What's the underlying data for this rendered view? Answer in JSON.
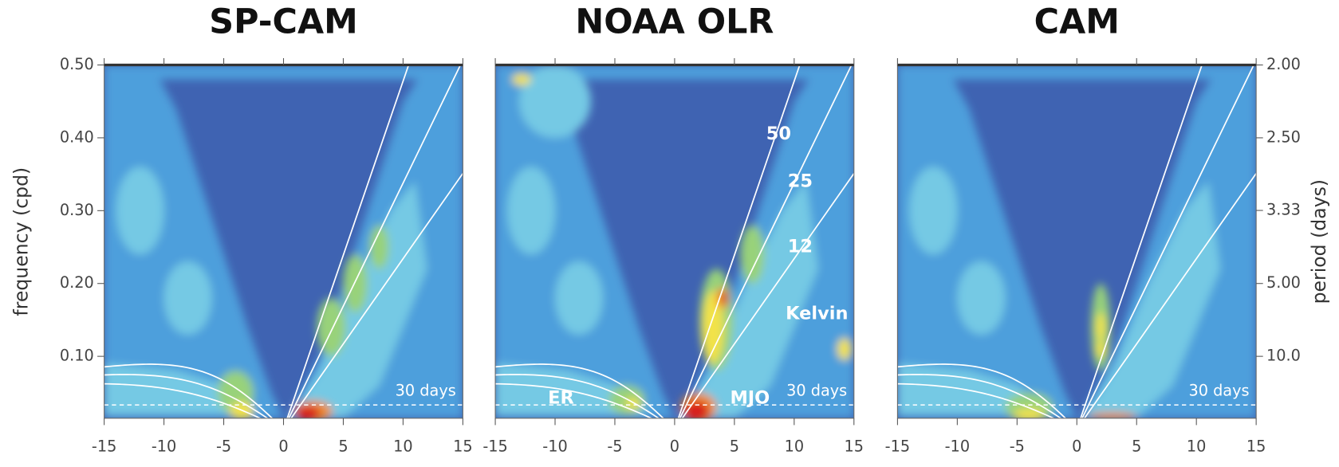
{
  "chart_data": [
    {
      "type": "spectrum",
      "title": "SP-CAM",
      "xlim": [
        -15,
        15
      ],
      "xticks": [
        -15,
        -10,
        -5,
        0,
        5,
        10,
        15
      ],
      "ylim": [
        0.015,
        0.5
      ],
      "yticks": [
        {
          "value": 0.1,
          "label": "0.10"
        },
        {
          "value": 0.2,
          "label": "0.20"
        },
        {
          "value": 0.3,
          "label": "0.30"
        },
        {
          "value": 0.4,
          "label": "0.40"
        },
        {
          "value": 0.5,
          "label": "0.50"
        }
      ],
      "ylabel": "frequency (cpd)",
      "kelvin_depths": [
        12,
        25,
        50
      ],
      "reference_period": 30,
      "reference_label": "30 days"
    },
    {
      "type": "spectrum",
      "title": "NOAA OLR",
      "xlim": [
        -15,
        15
      ],
      "xticks": [
        -15,
        -10,
        -5,
        0,
        5,
        10,
        15
      ],
      "ylim": [
        0.015,
        0.5
      ],
      "kelvin_depths": [
        12,
        25,
        50
      ],
      "label_depths": true,
      "annotations": [
        "Kelvin",
        "ER",
        "MJO"
      ],
      "reference_period": 30,
      "reference_label": "30 days"
    },
    {
      "type": "spectrum",
      "title": "CAM",
      "xlim": [
        -15,
        15
      ],
      "xticks": [
        -15,
        -10,
        -5,
        0,
        5,
        10,
        15
      ],
      "ylim": [
        0.015,
        0.5
      ],
      "y2label": "period (days)",
      "y2scale": "reciprocal",
      "y2ticks": [
        {
          "value": 2,
          "label": "2.00"
        },
        {
          "value": 2.5,
          "label": "2.50"
        },
        {
          "value": 3.33,
          "label": "3.33"
        },
        {
          "value": 5,
          "label": "5.00"
        },
        {
          "value": 10,
          "label": "10.0"
        }
      ],
      "kelvin_depths": [
        12,
        25,
        50
      ],
      "reference_period": 30,
      "reference_label": "30 days"
    }
  ]
}
